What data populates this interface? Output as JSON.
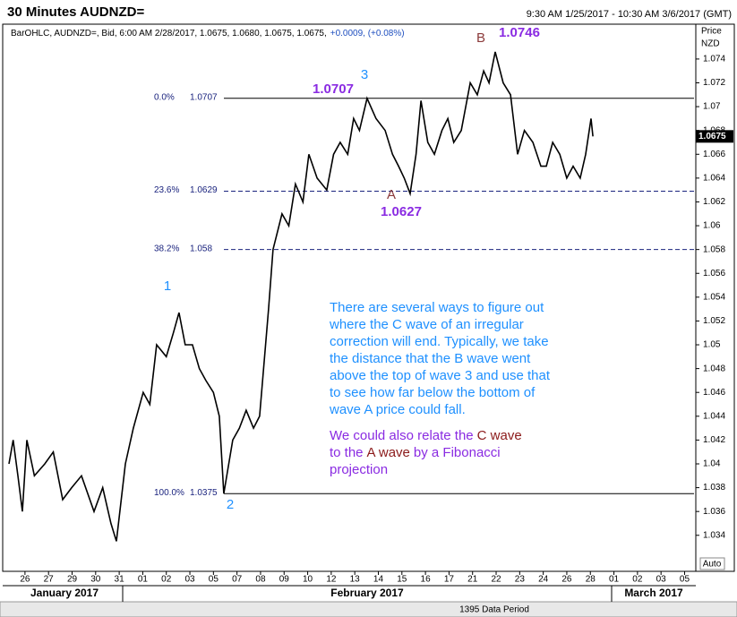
{
  "chart_data": {
    "type": "line",
    "title": "30 Minutes AUDNZD=",
    "date_range": "9:30 AM 1/25/2017 - 10:30 AM 3/6/2017 (GMT)",
    "legend_text": "BarOHLC, AUDNZD=, Bid, 6:00 AM 2/28/2017, 1.0675, 1.0680, 1.0675, 1.0675,",
    "change_text": "+0.0009, (+0.08%)",
    "y_label": "Price",
    "y_unit": "NZD",
    "last_price": 1.0675,
    "color": "#000000",
    "x": [
      -0.68,
      -0.5,
      -0.3,
      -0.11,
      0.08,
      0.4,
      0.84,
      1.2,
      1.6,
      1.98,
      2.4,
      2.93,
      3.3,
      3.65,
      3.88,
      4.26,
      4.6,
      5.02,
      5.3,
      5.59,
      6.0,
      6.3,
      6.54,
      6.8,
      7.11,
      7.4,
      7.68,
      8.0,
      8.25,
      8.44,
      8.82,
      9.1,
      9.39,
      9.7,
      9.96,
      10.34,
      10.53,
      10.91,
      11.2,
      11.48,
      11.8,
      12.05,
      12.4,
      12.81,
      13.1,
      13.38,
      13.7,
      13.95,
      14.2,
      14.52,
      14.9,
      15.29,
      15.6,
      15.86,
      16.1,
      16.35,
      16.6,
      16.81,
      17.1,
      17.38,
      17.7,
      17.95,
      18.2,
      18.52,
      18.9,
      19.2,
      19.47,
      19.7,
      19.96,
      20.3,
      20.61,
      20.91,
      21.2,
      21.56,
      21.9,
      22.13,
      22.4,
      22.7,
      23.0,
      23.27,
      23.57,
      23.8,
      24.03,
      24.11
    ],
    "values": [
      1.04,
      1.042,
      1.039,
      1.036,
      1.042,
      1.039,
      1.04,
      1.041,
      1.037,
      1.038,
      1.039,
      1.036,
      1.038,
      1.035,
      1.0335,
      1.04,
      1.043,
      1.046,
      1.045,
      1.05,
      1.049,
      1.051,
      1.0527,
      1.05,
      1.05,
      1.048,
      1.047,
      1.046,
      1.044,
      1.0375,
      1.042,
      1.043,
      1.0445,
      1.043,
      1.044,
      1.053,
      1.058,
      1.061,
      1.06,
      1.0635,
      1.062,
      1.066,
      1.064,
      1.063,
      1.066,
      1.067,
      1.066,
      1.069,
      1.068,
      1.0707,
      1.069,
      1.068,
      1.066,
      1.065,
      1.064,
      1.0627,
      1.066,
      1.0705,
      1.067,
      1.066,
      1.068,
      1.069,
      1.067,
      1.068,
      1.072,
      1.071,
      1.073,
      1.072,
      1.0746,
      1.072,
      1.071,
      1.066,
      1.068,
      1.067,
      1.065,
      1.065,
      1.067,
      1.066,
      1.064,
      1.065,
      1.064,
      1.066,
      1.069,
      1.0675
    ],
    "xlim": [
      -0.87,
      28.4
    ],
    "xticks": [
      {
        "value": 0,
        "label": "26"
      },
      {
        "value": 1,
        "label": "27"
      },
      {
        "value": 2,
        "label": "29"
      },
      {
        "value": 3,
        "label": "30"
      },
      {
        "value": 4,
        "label": "31"
      },
      {
        "value": 5,
        "label": "01"
      },
      {
        "value": 6,
        "label": "02"
      },
      {
        "value": 7,
        "label": "03"
      },
      {
        "value": 8,
        "label": "05"
      },
      {
        "value": 9,
        "label": "07"
      },
      {
        "value": 10,
        "label": "08"
      },
      {
        "value": 11,
        "label": "09"
      },
      {
        "value": 12,
        "label": "10"
      },
      {
        "value": 13,
        "label": "12"
      },
      {
        "value": 14,
        "label": "13"
      },
      {
        "value": 15,
        "label": "14"
      },
      {
        "value": 16,
        "label": "15"
      },
      {
        "value": 17,
        "label": "16"
      },
      {
        "value": 18,
        "label": "17"
      },
      {
        "value": 19,
        "label": "21"
      },
      {
        "value": 20,
        "label": "22"
      },
      {
        "value": 21,
        "label": "23"
      },
      {
        "value": 22,
        "label": "24"
      },
      {
        "value": 23,
        "label": "26"
      },
      {
        "value": 24,
        "label": "28"
      },
      {
        "value": 25,
        "label": "01"
      },
      {
        "value": 26,
        "label": "02"
      },
      {
        "value": 27,
        "label": "03"
      },
      {
        "value": 28,
        "label": "05"
      }
    ],
    "months": [
      "January 2017",
      "February 2017",
      "March 2017"
    ],
    "ylim": [
      1.0312,
      1.0767
    ],
    "yticks": [
      1.034,
      1.036,
      1.038,
      1.04,
      1.042,
      1.044,
      1.046,
      1.048,
      1.05,
      1.052,
      1.054,
      1.056,
      1.058,
      1.06,
      1.062,
      1.064,
      1.066,
      1.068,
      1.07,
      1.072,
      1.074
    ],
    "fib_levels": [
      {
        "label": "0.0%",
        "value": 1.0707,
        "style": "solid"
      },
      {
        "label": "23.6%",
        "value": 1.0629,
        "style": "dashed"
      },
      {
        "label": "38.2%",
        "value": 1.058,
        "style": "dashed"
      },
      {
        "label": "100.0%",
        "value": 1.0375,
        "style": "solid"
      }
    ],
    "waves": [
      {
        "label": "1",
        "color": "#1e90ff"
      },
      {
        "label": "2",
        "color": "#1e90ff"
      },
      {
        "label": "3",
        "color": "#1e90ff",
        "price": 1.0707
      },
      {
        "label": "A",
        "color": "#8b3a3a",
        "price": 1.0627
      },
      {
        "label": "B",
        "color": "#8b3a3a",
        "price": 1.0746
      }
    ],
    "price_color": "#8a2be2",
    "note": [
      "There are several ways to figure out",
      "where the C wave of an irregular",
      "correction will end. Typically, we take",
      "the distance that the B wave went",
      "above the top of wave 3 and use that",
      "to see how far below the bottom of",
      "wave A price could fall."
    ],
    "note_color": "#1e90ff",
    "note2": [
      [
        {
          "text": "We could also relate the",
          "color": "#8a2be2"
        },
        {
          "text": "C wave",
          "color": "#8b1a1a"
        }
      ],
      [
        {
          "text": "to the",
          "color": "#8a2be2"
        },
        {
          "text": "A wave",
          "color": "#8b1a1a"
        },
        {
          "text": "by a Fibonacci",
          "color": "#8a2be2"
        }
      ],
      [
        {
          "text": "projection",
          "color": "#8a2be2"
        }
      ]
    ],
    "scale_mode": "Auto",
    "status": "1395 Data Period"
  }
}
